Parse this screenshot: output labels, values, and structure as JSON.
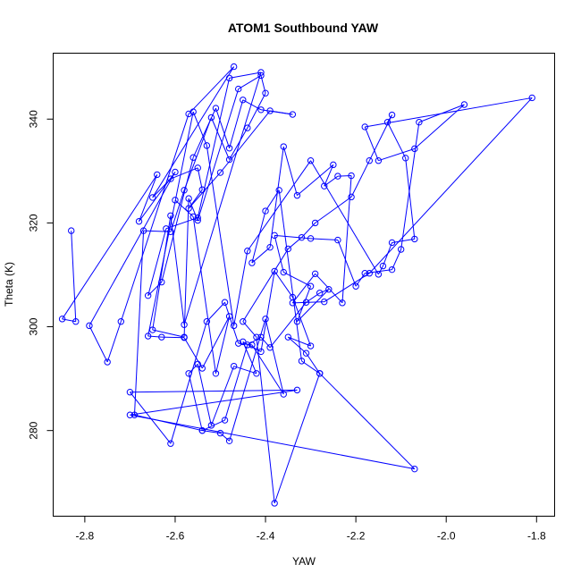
{
  "chart_data": {
    "type": "line",
    "title": "ATOM1 Southbound YAW",
    "xlabel": "YAW",
    "ylabel": "Theta (K)",
    "xlim": [
      -2.87,
      -1.76
    ],
    "ylim": [
      263.5,
      352.7
    ],
    "xticks": [
      -2.8,
      -2.6,
      -2.4,
      -2.2,
      -2.0,
      -1.8
    ],
    "xtick_labels": [
      "-2.8",
      "-2.6",
      "-2.4",
      "-2.2",
      "-2.0",
      "-1.8"
    ],
    "yticks": [
      280,
      300,
      320,
      340
    ],
    "ytick_labels": [
      "280",
      "300",
      "320",
      "340"
    ],
    "grid": false,
    "legend": "none",
    "series_color": "#0000ff",
    "marker": "open-circle",
    "x": [
      -2.83,
      -2.82,
      -2.85,
      -2.64,
      -2.68,
      -2.6,
      -2.79,
      -2.75,
      -2.72,
      -2.57,
      -2.47,
      -2.65,
      -2.61,
      -2.55,
      -2.54,
      -2.57,
      -2.5,
      -2.39,
      -2.34,
      -2.41,
      -2.45,
      -2.48,
      -2.51,
      -2.56,
      -2.63,
      -2.66,
      -2.62,
      -2.55,
      -2.48,
      -2.41,
      -2.58,
      -2.61,
      -2.65,
      -2.58,
      -2.57,
      -2.55,
      -2.46,
      -2.41,
      -2.4,
      -2.44,
      -2.48,
      -2.52,
      -2.58,
      -2.61,
      -2.67,
      -2.69,
      -2.54,
      -2.49,
      -2.44,
      -2.41,
      -2.39,
      -2.31,
      -2.28,
      -2.26,
      -2.33,
      -2.3,
      -2.36,
      -2.38,
      -2.3,
      -2.24,
      -2.2,
      -2.18,
      -2.12,
      -2.1,
      -2.06,
      -1.96,
      -2.07,
      -2.15,
      -2.18,
      -1.81,
      -2.17,
      -2.27,
      -2.34,
      -2.29,
      -2.23,
      -2.21,
      -2.24,
      -2.27,
      -2.25,
      -2.33,
      -2.36,
      -2.39,
      -2.43,
      -2.4,
      -2.37,
      -2.32,
      -2.28,
      -2.31,
      -2.35,
      -2.3,
      -2.34,
      -2.38,
      -2.41,
      -2.45,
      -2.42,
      -2.47,
      -2.52,
      -2.55,
      -2.57,
      -2.54,
      -2.5,
      -2.48,
      -2.4,
      -2.36,
      -2.43,
      -2.46,
      -2.49,
      -2.53,
      -2.61,
      -2.7,
      -2.33,
      -2.7,
      -2.07,
      -2.28,
      -2.38,
      -2.42,
      -2.45,
      -2.35,
      -2.32,
      -2.29,
      -2.21,
      -2.17,
      -2.12,
      -2.13,
      -2.09,
      -2.07,
      -2.12,
      -2.14,
      -2.15,
      -2.3,
      -2.44,
      -2.47,
      -2.53,
      -2.56,
      -2.66,
      -2.63,
      -2.58,
      -2.54,
      -2.48,
      -2.51,
      -2.56,
      -2.6
    ],
    "y": [
      318.5,
      301.0,
      301.5,
      329.3,
      320.3,
      329.8,
      300.2,
      293.2,
      301.0,
      341.0,
      350.1,
      324.9,
      328.5,
      330.6,
      326.4,
      322.8,
      329.7,
      341.6,
      340.9,
      341.8,
      343.7,
      334.4,
      342.1,
      332.6,
      308.6,
      306.0,
      318.9,
      321.0,
      347.9,
      349.0,
      300.4,
      321.4,
      299.4,
      298.0,
      324.7,
      320.5,
      345.8,
      348.4,
      345.0,
      338.3,
      332.2,
      340.3,
      326.3,
      318.3,
      318.5,
      283.0,
      280.0,
      282.0,
      296.5,
      298.0,
      296.0,
      304.7,
      306.5,
      307.2,
      301.0,
      307.8,
      310.5,
      317.6,
      317.0,
      316.7,
      307.8,
      310.3,
      311.0,
      314.9,
      339.4,
      342.8,
      334.3,
      332.0,
      338.5,
      344.1,
      310.3,
      304.8,
      304.6,
      310.2,
      304.6,
      329.1,
      329.0,
      327.1,
      331.2,
      325.3,
      334.7,
      315.3,
      312.3,
      322.3,
      326.3,
      293.4,
      291.0,
      294.9,
      298.0,
      296.3,
      305.7,
      310.7,
      295.2,
      297.1,
      291.0,
      292.4,
      281.0,
      292.8,
      291.0,
      280.0,
      279.5,
      278.0,
      301.5,
      287.0,
      296.5,
      296.8,
      304.7,
      301.0,
      277.5,
      287.4,
      287.8,
      283.0,
      272.6,
      291.0,
      266.0,
      298.0,
      301.0,
      315.0,
      317.2,
      320.0,
      325.0,
      332.0,
      340.8,
      339.4,
      332.5,
      316.9,
      316.2,
      311.7,
      310.1,
      332.0,
      314.6,
      300.2,
      334.9,
      341.4,
      298.2,
      298.0,
      297.9,
      292.0,
      302.0,
      291.0,
      321.2,
      324.4
    ]
  }
}
